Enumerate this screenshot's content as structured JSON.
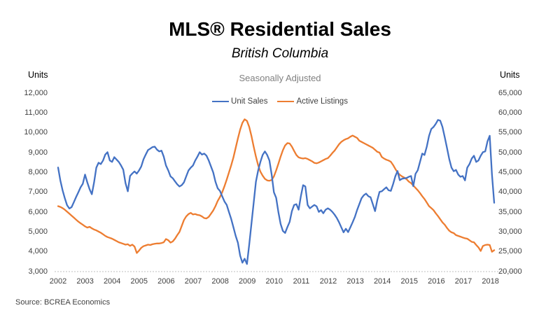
{
  "header": {
    "title": "MLS® Residential Sales",
    "subtitle": "British Columbia",
    "note": "Seasonally Adjusted"
  },
  "axes": {
    "left_unit_label": "Units",
    "right_unit_label": "Units",
    "left_tick_labels": [
      "3,000",
      "4,000",
      "5,000",
      "6,000",
      "7,000",
      "8,000",
      "9,000",
      "10,000",
      "11,000",
      "12,000"
    ],
    "right_tick_labels": [
      "20,000",
      "25,000",
      "30,000",
      "35,000",
      "40,000",
      "45,000",
      "50,000",
      "55,000",
      "60,000",
      "65,000"
    ],
    "x_tick_labels": [
      "2002",
      "2003",
      "2004",
      "2005",
      "2006",
      "2007",
      "2008",
      "2009",
      "2010",
      "2011",
      "2012",
      "2013",
      "2014",
      "2015",
      "2016",
      "2017",
      "2018"
    ]
  },
  "legend": [
    {
      "label": "Unit Sales",
      "color": "#4472C4"
    },
    {
      "label": "Active Listings",
      "color": "#ED7D31"
    }
  ],
  "source": "Source: BCREA Economics",
  "chart_data": {
    "type": "line",
    "title": "MLS® Residential Sales",
    "subtitle": "British Columbia",
    "note": "Seasonally Adjusted",
    "frequency": "monthly",
    "x_start": "2002-01",
    "x_end": "2018-03",
    "x_tick_years": [
      "2002",
      "2003",
      "2004",
      "2005",
      "2006",
      "2007",
      "2008",
      "2009",
      "2010",
      "2011",
      "2012",
      "2013",
      "2014",
      "2015",
      "2016",
      "2017",
      "2018"
    ],
    "left_axis": {
      "label": "Units",
      "min": 3000,
      "max": 12000,
      "step": 1000
    },
    "right_axis": {
      "label": "Units",
      "min": 20000,
      "max": 65000,
      "step": 5000
    },
    "gridlines": "none",
    "baseline": "dashed light gray at axis minimum",
    "legend_position": "top-center",
    "series": [
      {
        "name": "Unit Sales",
        "axis": "left",
        "color": "#4472C4",
        "values": [
          8250,
          7600,
          7100,
          6700,
          6350,
          6180,
          6250,
          6500,
          6760,
          7000,
          7250,
          7430,
          7890,
          7500,
          7150,
          6900,
          7500,
          8240,
          8490,
          8420,
          8600,
          8900,
          9020,
          8600,
          8530,
          8770,
          8650,
          8530,
          8350,
          8140,
          7460,
          7050,
          7820,
          7950,
          8050,
          7940,
          8100,
          8300,
          8660,
          8900,
          9130,
          9200,
          9280,
          9300,
          9150,
          9060,
          9100,
          8800,
          8350,
          8100,
          7800,
          7710,
          7550,
          7400,
          7290,
          7360,
          7500,
          7800,
          8100,
          8240,
          8350,
          8600,
          8800,
          9020,
          8900,
          8950,
          8850,
          8600,
          8300,
          8000,
          7530,
          7200,
          7070,
          6800,
          6540,
          6360,
          6000,
          5650,
          5230,
          4800,
          4450,
          3800,
          3450,
          3650,
          3380,
          4350,
          5410,
          6470,
          7530,
          8100,
          8530,
          8880,
          9060,
          8880,
          8600,
          7890,
          7000,
          6720,
          6000,
          5400,
          5050,
          4950,
          5250,
          5510,
          6050,
          6360,
          6400,
          6120,
          6800,
          7360,
          7290,
          6360,
          6190,
          6280,
          6360,
          6290,
          6010,
          6100,
          5940,
          6120,
          6190,
          6120,
          6010,
          5870,
          5700,
          5480,
          5230,
          4980,
          5160,
          4990,
          5230,
          5480,
          5750,
          6100,
          6400,
          6700,
          6850,
          6930,
          6800,
          6750,
          6400,
          6050,
          6600,
          7020,
          7050,
          7150,
          7250,
          7100,
          7070,
          7400,
          7800,
          8070,
          7610,
          7680,
          7700,
          7720,
          7780,
          7820,
          7310,
          7930,
          8110,
          8530,
          8950,
          8880,
          9300,
          9840,
          10190,
          10290,
          10450,
          10650,
          10610,
          10290,
          9770,
          9230,
          8670,
          8240,
          8060,
          8130,
          7890,
          7780,
          7820,
          7600,
          8240,
          8420,
          8700,
          8840,
          8530,
          8600,
          8840,
          9020,
          9060,
          9560,
          9850,
          7900,
          6470
        ]
      },
      {
        "name": "Active Listings",
        "axis": "right",
        "color": "#ED7D31",
        "values": [
          36500,
          36300,
          36000,
          35600,
          35100,
          34600,
          34100,
          33600,
          33100,
          32600,
          32200,
          31800,
          31400,
          31100,
          31300,
          30900,
          30600,
          30400,
          30100,
          29800,
          29400,
          29000,
          28700,
          28500,
          28300,
          28000,
          27700,
          27400,
          27200,
          27000,
          26800,
          26900,
          26500,
          26800,
          26300,
          24700,
          25300,
          26000,
          26400,
          26600,
          26800,
          26700,
          26900,
          27000,
          27100,
          27100,
          27200,
          27400,
          28200,
          27900,
          27300,
          27600,
          28300,
          29200,
          30000,
          31500,
          33000,
          33900,
          34500,
          34800,
          34400,
          34500,
          34300,
          34200,
          33900,
          33500,
          33400,
          33800,
          34600,
          35400,
          36500,
          37800,
          38800,
          40000,
          41500,
          43200,
          45000,
          46800,
          48800,
          51200,
          53600,
          55800,
          57500,
          58400,
          58000,
          56500,
          54200,
          51500,
          49000,
          46800,
          45200,
          44200,
          43400,
          43000,
          42900,
          43100,
          44000,
          45500,
          47200,
          49000,
          50600,
          51800,
          52400,
          52300,
          51500,
          50400,
          49400,
          48800,
          48600,
          48500,
          48600,
          48400,
          48100,
          47800,
          47400,
          47300,
          47500,
          47800,
          48100,
          48400,
          48600,
          49200,
          49900,
          50500,
          51300,
          52100,
          52700,
          53100,
          53400,
          53600,
          54000,
          54300,
          54000,
          53700,
          53000,
          52700,
          52400,
          52100,
          51800,
          51500,
          51200,
          50700,
          50200,
          50000,
          48900,
          48500,
          48200,
          48000,
          47700,
          46900,
          45900,
          45000,
          44400,
          44000,
          43700,
          43300,
          42700,
          42300,
          41700,
          41100,
          40500,
          39800,
          39000,
          38300,
          37400,
          36500,
          36000,
          35500,
          34700,
          34000,
          33200,
          32400,
          31800,
          31000,
          30300,
          29900,
          29700,
          29200,
          29000,
          28800,
          28600,
          28400,
          28300,
          27900,
          27500,
          27400,
          26700,
          26100,
          25200,
          26450,
          26700,
          26800,
          26700,
          25000,
          25400
        ]
      }
    ]
  }
}
